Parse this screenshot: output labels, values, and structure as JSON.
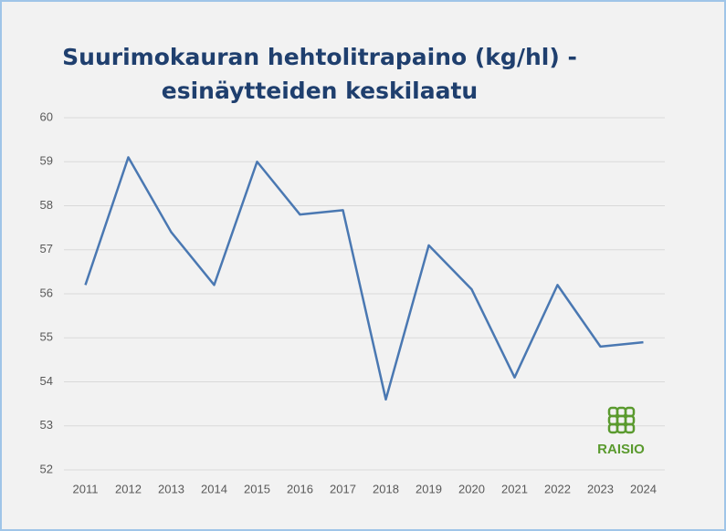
{
  "chart_data": {
    "type": "line",
    "title": [
      "Suurimokauran hehtolitrapaino (kg/hl) -",
      "esinäytteiden keskilaatu"
    ],
    "categories": [
      "2011",
      "2012",
      "2013",
      "2014",
      "2015",
      "2016",
      "2017",
      "2018",
      "2019",
      "2020",
      "2021",
      "2022",
      "2023",
      "2024"
    ],
    "series": [
      {
        "color": "#4a78b2",
        "values": [
          56.2,
          59.1,
          57.4,
          56.2,
          59.0,
          57.8,
          57.9,
          53.6,
          57.1,
          56.1,
          54.1,
          56.2,
          54.8,
          54.9
        ]
      }
    ],
    "ylim": [
      52,
      60
    ],
    "yticks": [
      52,
      53,
      54,
      55,
      56,
      57,
      58,
      59,
      60
    ],
    "grid": true,
    "logo": "RAISIO"
  }
}
